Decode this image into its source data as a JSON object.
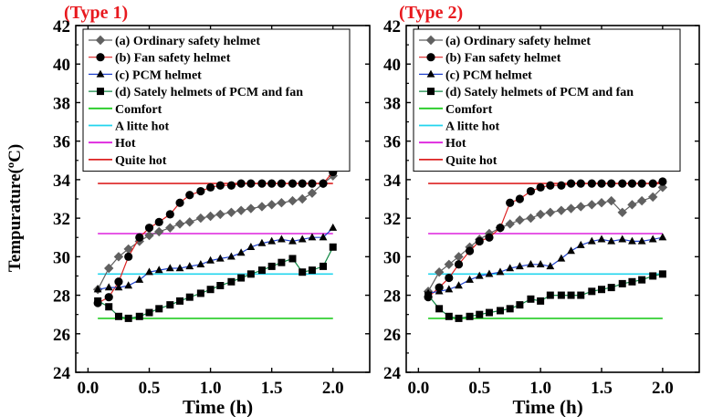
{
  "y_axis_label": "Tempurature(ºC)",
  "x_axis_label": "Time (h)",
  "chart_data": [
    {
      "type": "line",
      "title": "(Type 1)",
      "xlabel": "Time (h)",
      "ylabel": "Tempurature(ºC)",
      "xlim": [
        -0.1,
        2.3
      ],
      "ylim": [
        24,
        42
      ],
      "x_ticks": [
        "0.0",
        "0.5",
        "1.0",
        "1.5",
        "2.0"
      ],
      "y_ticks": [
        "24",
        "26",
        "28",
        "30",
        "32",
        "34",
        "36",
        "38",
        "40",
        "42"
      ],
      "legend_position": "top-left",
      "series": [
        {
          "name": "(a) Ordinary safety helmet",
          "color": "#606060",
          "marker": "diamond",
          "x": [
            0.08,
            0.17,
            0.25,
            0.33,
            0.42,
            0.5,
            0.58,
            0.67,
            0.75,
            0.83,
            0.92,
            1.0,
            1.08,
            1.17,
            1.25,
            1.33,
            1.42,
            1.5,
            1.58,
            1.67,
            1.75,
            1.83,
            1.92,
            2.0
          ],
          "y": [
            28.3,
            29.4,
            30.0,
            30.4,
            30.8,
            31.1,
            31.3,
            31.5,
            31.7,
            31.8,
            32.0,
            32.1,
            32.2,
            32.3,
            32.4,
            32.5,
            32.6,
            32.7,
            32.8,
            32.9,
            33.0,
            33.3,
            33.8,
            34.2
          ]
        },
        {
          "name": "(b) Fan safety helmet",
          "color": "#000000",
          "marker": "circle",
          "x": [
            0.08,
            0.17,
            0.25,
            0.33,
            0.42,
            0.5,
            0.58,
            0.67,
            0.75,
            0.83,
            0.92,
            1.0,
            1.08,
            1.17,
            1.25,
            1.33,
            1.42,
            1.5,
            1.58,
            1.67,
            1.75,
            1.83,
            1.92,
            2.0
          ],
          "y": [
            27.6,
            27.9,
            28.7,
            30.0,
            31.0,
            31.5,
            31.8,
            32.2,
            32.8,
            33.2,
            33.4,
            33.6,
            33.7,
            33.7,
            33.8,
            33.8,
            33.8,
            33.8,
            33.8,
            33.8,
            33.8,
            33.8,
            33.8,
            34.4
          ]
        },
        {
          "name": "(c) PCM helmet",
          "color": "#000000",
          "marker": "triangle",
          "x": [
            0.08,
            0.17,
            0.25,
            0.33,
            0.42,
            0.5,
            0.58,
            0.67,
            0.75,
            0.83,
            0.92,
            1.0,
            1.08,
            1.17,
            1.25,
            1.33,
            1.42,
            1.5,
            1.58,
            1.67,
            1.75,
            1.83,
            1.92,
            2.0
          ],
          "y": [
            28.3,
            28.4,
            28.4,
            28.5,
            28.8,
            29.2,
            29.3,
            29.4,
            29.4,
            29.5,
            29.6,
            29.8,
            29.9,
            30.0,
            30.2,
            30.5,
            30.7,
            30.8,
            30.9,
            30.8,
            30.9,
            31.0,
            31.0,
            31.5
          ]
        },
        {
          "name": "(d) Sately helmets of PCM and fan",
          "color": "#000000",
          "marker": "square",
          "x": [
            0.08,
            0.17,
            0.25,
            0.33,
            0.42,
            0.5,
            0.58,
            0.67,
            0.75,
            0.83,
            0.92,
            1.0,
            1.08,
            1.17,
            1.25,
            1.33,
            1.42,
            1.5,
            1.58,
            1.67,
            1.75,
            1.83,
            1.92,
            2.0
          ],
          "y": [
            27.7,
            27.4,
            26.9,
            26.8,
            26.9,
            27.1,
            27.3,
            27.5,
            27.7,
            27.9,
            28.1,
            28.3,
            28.5,
            28.7,
            28.9,
            29.1,
            29.3,
            29.5,
            29.7,
            29.9,
            29.2,
            29.3,
            29.5,
            30.5
          ]
        }
      ],
      "reference_lines": [
        {
          "name": "Comfort",
          "color": "#22cc22",
          "y": 26.8,
          "x": [
            0.08,
            2.0
          ]
        },
        {
          "name": "A litte hot",
          "color": "#22d4ee",
          "y": 29.1,
          "x": [
            0.08,
            2.0
          ]
        },
        {
          "name": "Hot",
          "color": "#dd22dd",
          "y": 31.2,
          "x": [
            0.08,
            2.0
          ]
        },
        {
          "name": "Quite hot",
          "color": "#dd2222",
          "y": 33.8,
          "x": [
            0.08,
            2.0
          ]
        }
      ]
    },
    {
      "type": "line",
      "title": "(Type 2)",
      "xlabel": "Time (h)",
      "ylabel": "",
      "xlim": [
        -0.1,
        2.3
      ],
      "ylim": [
        24,
        42
      ],
      "x_ticks": [
        "0.0",
        "0.5",
        "1.0",
        "1.5",
        "2.0"
      ],
      "y_ticks": [
        "24",
        "26",
        "28",
        "30",
        "32",
        "34",
        "36",
        "38",
        "40",
        "42"
      ],
      "legend_position": "top-left",
      "series": [
        {
          "name": "(a) Ordinary safety helmet",
          "color": "#606060",
          "marker": "diamond",
          "x": [
            0.08,
            0.17,
            0.25,
            0.33,
            0.42,
            0.5,
            0.58,
            0.67,
            0.75,
            0.83,
            0.92,
            1.0,
            1.08,
            1.17,
            1.25,
            1.33,
            1.42,
            1.5,
            1.58,
            1.67,
            1.75,
            1.83,
            1.92,
            2.0
          ],
          "y": [
            28.2,
            29.2,
            29.6,
            30.0,
            30.5,
            30.9,
            31.2,
            31.5,
            31.7,
            31.9,
            32.0,
            32.2,
            32.3,
            32.4,
            32.5,
            32.6,
            32.7,
            32.8,
            32.9,
            32.3,
            32.7,
            32.9,
            33.1,
            33.6
          ]
        },
        {
          "name": "(b) Fan safety helmet",
          "color": "#000000",
          "marker": "circle",
          "x": [
            0.08,
            0.17,
            0.25,
            0.33,
            0.42,
            0.5,
            0.58,
            0.67,
            0.75,
            0.83,
            0.92,
            1.0,
            1.08,
            1.17,
            1.25,
            1.33,
            1.42,
            1.5,
            1.58,
            1.67,
            1.75,
            1.83,
            1.92,
            2.0
          ],
          "y": [
            27.9,
            28.4,
            28.9,
            29.6,
            30.3,
            30.8,
            31.0,
            31.5,
            32.8,
            33.0,
            33.4,
            33.6,
            33.7,
            33.7,
            33.8,
            33.8,
            33.8,
            33.8,
            33.8,
            33.8,
            33.8,
            33.8,
            33.8,
            33.9
          ]
        },
        {
          "name": "(c) PCM helmet",
          "color": "#000000",
          "marker": "triangle",
          "x": [
            0.08,
            0.17,
            0.25,
            0.33,
            0.42,
            0.5,
            0.58,
            0.67,
            0.75,
            0.83,
            0.92,
            1.0,
            1.08,
            1.17,
            1.25,
            1.33,
            1.42,
            1.5,
            1.58,
            1.67,
            1.75,
            1.83,
            1.92,
            2.0
          ],
          "y": [
            28.1,
            28.2,
            28.3,
            28.5,
            28.8,
            29.0,
            29.1,
            29.2,
            29.4,
            29.5,
            29.6,
            29.6,
            29.5,
            29.9,
            30.3,
            30.6,
            30.8,
            30.9,
            30.8,
            30.9,
            30.8,
            30.8,
            30.9,
            31.0
          ]
        },
        {
          "name": "(d) Sately helmets of PCM and fan",
          "color": "#000000",
          "marker": "square",
          "x": [
            0.08,
            0.17,
            0.25,
            0.33,
            0.42,
            0.5,
            0.58,
            0.67,
            0.75,
            0.83,
            0.92,
            1.0,
            1.08,
            1.17,
            1.25,
            1.33,
            1.42,
            1.5,
            1.58,
            1.67,
            1.75,
            1.83,
            1.92,
            2.0
          ],
          "y": [
            28.0,
            27.3,
            26.9,
            26.8,
            26.9,
            27.0,
            27.1,
            27.2,
            27.3,
            27.5,
            27.8,
            27.7,
            28.0,
            28.0,
            28.0,
            28.0,
            28.2,
            28.3,
            28.4,
            28.6,
            28.7,
            28.8,
            29.0,
            29.1
          ]
        }
      ],
      "reference_lines": [
        {
          "name": "Comfort",
          "color": "#22cc22",
          "y": 26.8,
          "x": [
            0.08,
            2.0
          ]
        },
        {
          "name": "A litte hot",
          "color": "#22d4ee",
          "y": 29.1,
          "x": [
            0.08,
            2.0
          ]
        },
        {
          "name": "Hot",
          "color": "#dd22dd",
          "y": 31.2,
          "x": [
            0.08,
            2.0
          ]
        },
        {
          "name": "Quite hot",
          "color": "#dd2222",
          "y": 33.8,
          "x": [
            0.08,
            2.0
          ]
        }
      ]
    }
  ]
}
